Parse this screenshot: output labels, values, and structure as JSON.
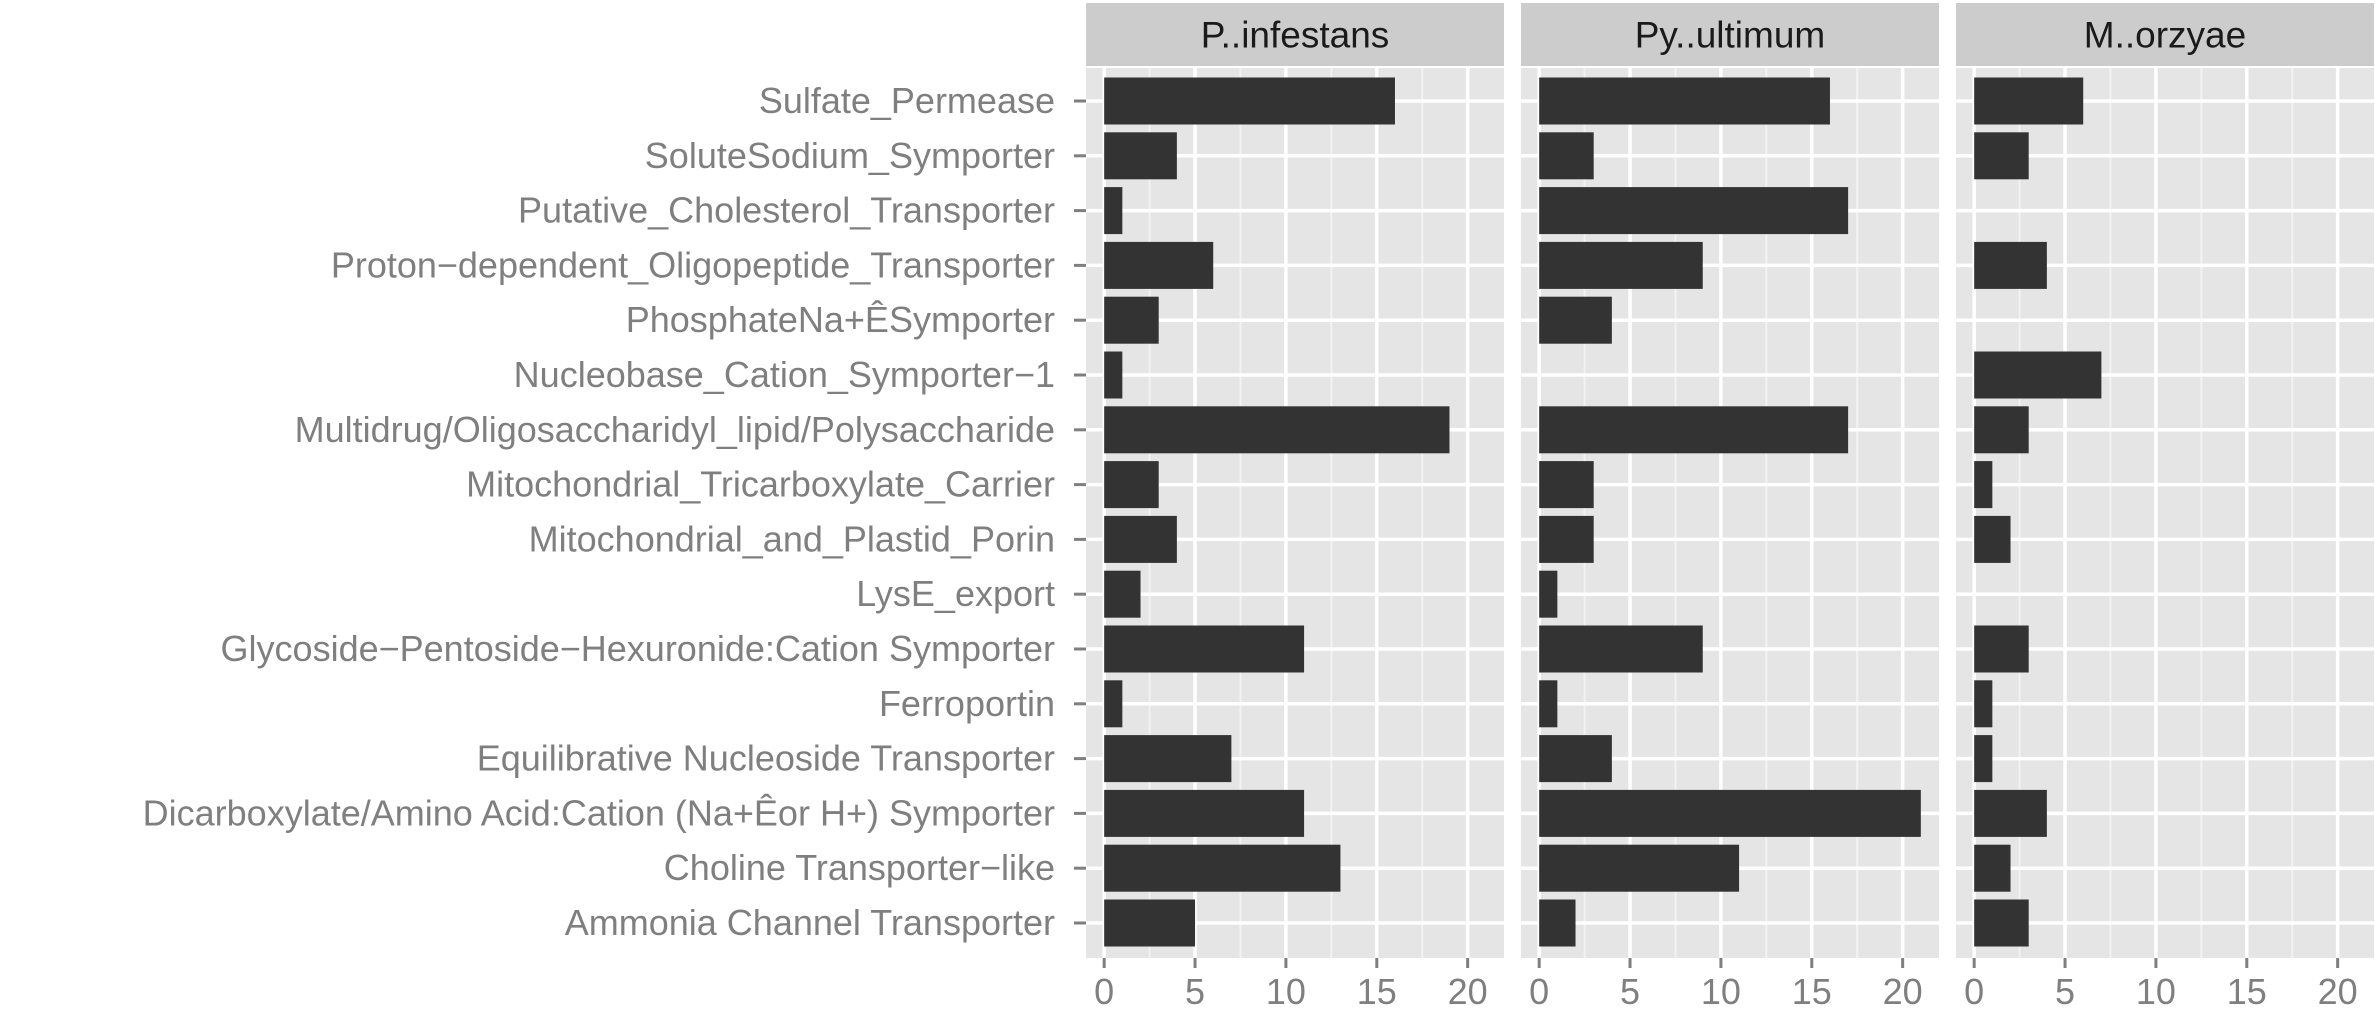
{
  "chart_data": {
    "type": "bar",
    "orientation": "horizontal",
    "facets": [
      "P..infestans",
      "Py..ultimum",
      "M..orzyae"
    ],
    "categories": [
      "Sulfate_Permease",
      "SoluteSodium_Symporter",
      "Putative_Cholesterol_Transporter",
      "Proton−dependent_Oligopeptide_Transporter",
      "PhosphateNa+ÊSymporter",
      "Nucleobase_Cation_Symporter−1",
      "Multidrug/Oligosaccharidyl_lipid/Polysaccharide",
      "Mitochondrial_Tricarboxylate_Carrier",
      "Mitochondrial_and_Plastid_Porin",
      "LysE_export",
      "Glycoside−Pentoside−Hexuronide:Cation Symporter",
      "Ferroportin",
      "Equilibrative Nucleoside Transporter",
      "Dicarboxylate/Amino Acid:Cation (Na+Êor H+) Symporter",
      "Choline Transporter−like",
      "Ammonia Channel Transporter"
    ],
    "series": [
      {
        "name": "P..infestans",
        "values": [
          16,
          4,
          1,
          6,
          3,
          1,
          19,
          3,
          4,
          2,
          11,
          1,
          7,
          11,
          13,
          5
        ]
      },
      {
        "name": "Py..ultimum",
        "values": [
          16,
          3,
          17,
          9,
          4,
          0,
          17,
          3,
          3,
          1,
          9,
          1,
          4,
          21,
          11,
          2
        ]
      },
      {
        "name": "M..orzyae",
        "values": [
          6,
          3,
          0,
          4,
          0,
          7,
          3,
          1,
          2,
          0,
          3,
          1,
          1,
          4,
          2,
          3
        ]
      }
    ],
    "xticks": [
      0,
      5,
      10,
      15,
      20
    ],
    "xlim": [
      -1,
      22
    ],
    "xlabel": "",
    "ylabel": "",
    "title": "",
    "grid": true,
    "colors": {
      "bar": "#333333",
      "panel": "#e5e5e5",
      "grid_major": "#ffffff",
      "grid_minor": "#f2f2f2",
      "strip": "#cccccc",
      "text": "#7f7f7f",
      "strip_text": "#1a1a1a"
    }
  }
}
